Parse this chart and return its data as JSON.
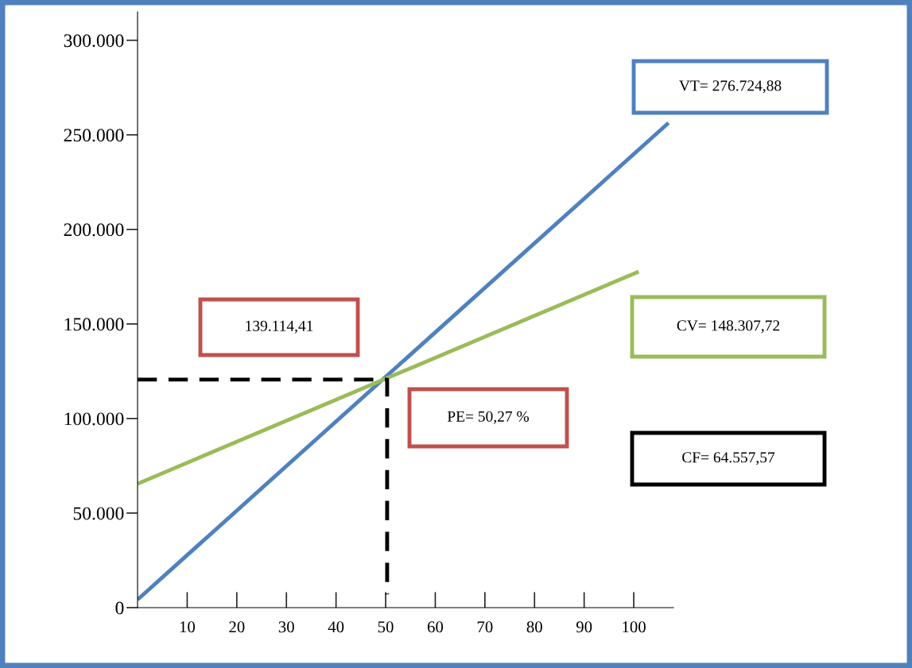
{
  "chart_data": {
    "type": "line",
    "x": [
      0,
      107
    ],
    "series": [
      {
        "color": "#4f81bd",
        "values": [
          4200,
          256300
        ]
      },
      {
        "color": "#9bbb59",
        "x": [
          0,
          101
        ],
        "values": [
          65500,
          177700
        ]
      },
      {
        "color": "#000000",
        "line_style": "dashed",
        "x": [
          0,
          50.3,
          50.3
        ],
        "values": [
          120600,
          120600,
          7000
        ]
      }
    ],
    "xlim": [
      0,
      108
    ],
    "xticks": [
      10,
      20,
      30,
      40,
      50,
      60,
      70,
      80,
      90,
      100
    ],
    "ylim": [
      0,
      315000
    ],
    "yticks": [
      {
        "value": 0,
        "label": "0"
      },
      {
        "value": 50000,
        "label": "50.000"
      },
      {
        "value": 100000,
        "label": "100.000"
      },
      {
        "value": 150000,
        "label": "150.000"
      },
      {
        "value": 200000,
        "label": "200.000"
      },
      {
        "value": 250000,
        "label": "250.000"
      },
      {
        "value": 300000,
        "label": "300.000"
      }
    ],
    "grid": false,
    "legend": false,
    "marker": "none",
    "line_style": "solid",
    "annotations": [
      "VT= 276.724,88",
      "139.114,41",
      "CV= 148.307,72",
      "PE= 50,27 %",
      "CF= 64.557,57"
    ]
  }
}
